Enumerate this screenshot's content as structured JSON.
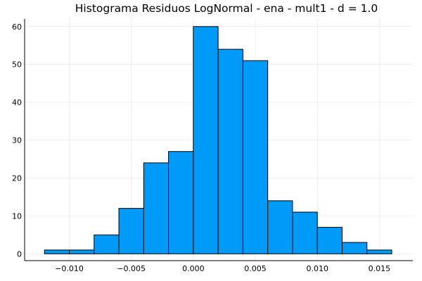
{
  "chart_data": {
    "type": "bar",
    "title": "Histograma Residuos LogNormal - ena - mult1 - d = 1.0",
    "xlabel": "",
    "ylabel": "",
    "bin_edges": [
      -0.012,
      -0.01,
      -0.008,
      -0.006,
      -0.004,
      -0.002,
      0.0,
      0.002,
      0.004,
      0.006,
      0.008,
      0.01,
      0.012,
      0.014,
      0.016
    ],
    "values": [
      1,
      1,
      5,
      12,
      24,
      27,
      60,
      54,
      51,
      14,
      11,
      7,
      3,
      1
    ],
    "xlim": [
      -0.0136,
      0.0177
    ],
    "ylim": [
      -1.8,
      62
    ],
    "xticks": [
      -0.01,
      -0.005,
      0.0,
      0.005,
      0.01,
      0.015
    ],
    "xtick_labels": [
      "−0.010",
      "−0.005",
      "0.000",
      "0.005",
      "0.010",
      "0.015"
    ],
    "yticks": [
      0,
      10,
      20,
      30,
      40,
      50,
      60
    ],
    "ytick_labels": [
      "0",
      "10",
      "20",
      "30",
      "40",
      "50",
      "60"
    ],
    "grid": true,
    "legend": "none",
    "bar_color": "#009af9"
  }
}
